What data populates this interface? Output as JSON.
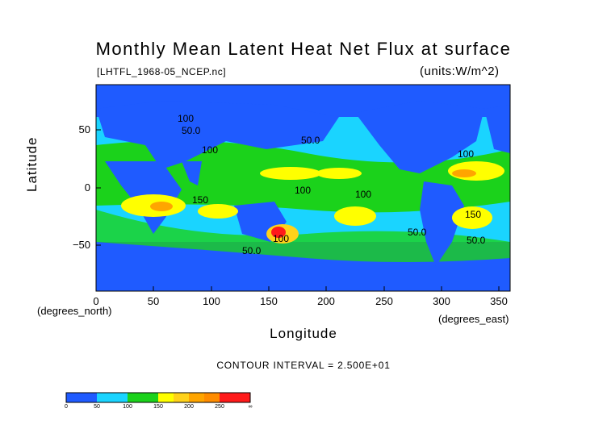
{
  "title": "Monthly Mean Latent Heat Net Flux at surface",
  "file_label": "[LHTFL_1968-05_NCEP.nc]",
  "units_label": "(units:W/m^2)",
  "axes": {
    "y_label": "Latitude",
    "x_label": "Longitude",
    "x_unit_left": "(degrees_north)",
    "x_unit_right": "(degrees_east)",
    "x_ticks": [
      "0",
      "50",
      "100",
      "150",
      "200",
      "250",
      "300",
      "350"
    ],
    "y_ticks": [
      "50",
      "0",
      "−50"
    ]
  },
  "contour_interval": "CONTOUR INTERVAL = 2.500E+01",
  "map_contour_labels": [
    "100",
    "50.0",
    "100",
    "50.0",
    "100",
    "150",
    "100",
    "100",
    "150",
    "100",
    "50.0",
    "50.0",
    "50.0"
  ],
  "colorbar": {
    "colors": [
      "#1f5bff",
      "#1f5bff",
      "#1ad4ff",
      "#1ad4ff",
      "#1bd21b",
      "#1bd21b",
      "#ffff00",
      "#ffd21a",
      "#ffa500",
      "#ff8c00",
      "#ff1a1a",
      "#ff1a1a"
    ],
    "tick_labels": [
      "0",
      "50",
      "100",
      "150",
      "200",
      "250",
      "∞"
    ]
  }
}
